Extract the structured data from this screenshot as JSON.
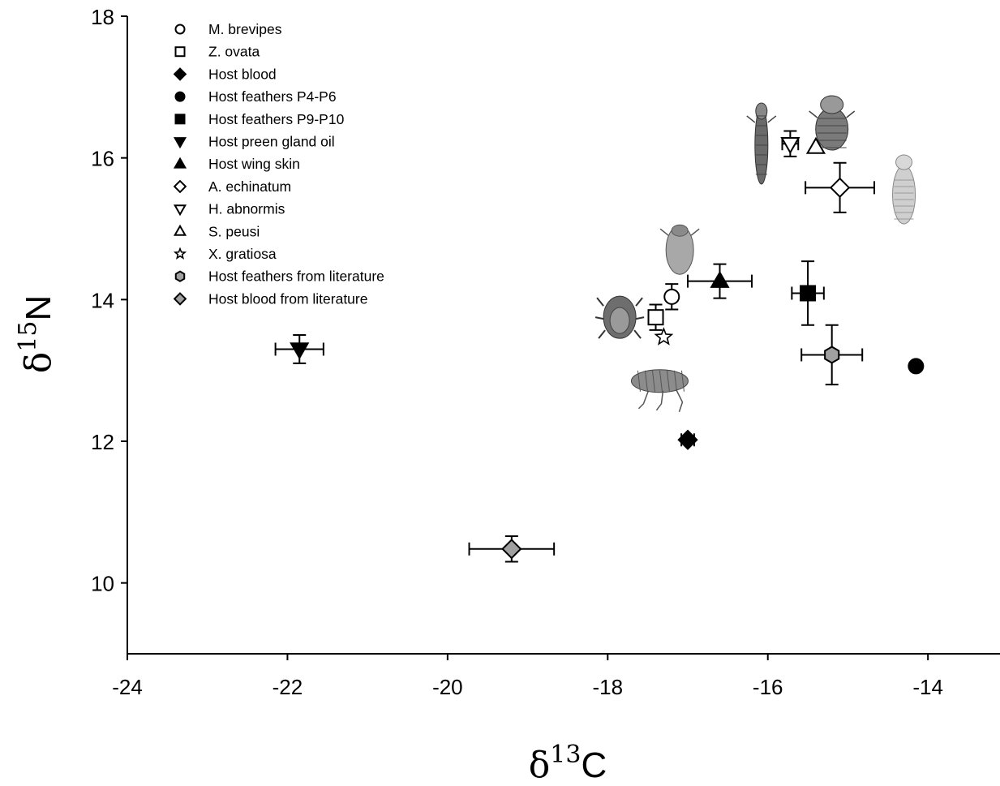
{
  "chart_data": {
    "type": "scatter",
    "title": "",
    "xlabel": "δ13C",
    "xlabel_parts": {
      "base": "δ",
      "sup": "13",
      "tail": "C"
    },
    "ylabel": "δ15N",
    "ylabel_parts": {
      "base": "δ",
      "sup": "15",
      "tail": "N"
    },
    "xlim": [
      -24,
      -13.1
    ],
    "ylim": [
      9,
      18
    ],
    "xticks": [
      -24,
      -22,
      -20,
      -18,
      -16,
      -14
    ],
    "xtick_labels": [
      "-24",
      "-22",
      "-20",
      "-18",
      "-16",
      "-14"
    ],
    "yticks": [
      10,
      12,
      14,
      16,
      18
    ],
    "ytick_labels": [
      "10",
      "12",
      "14",
      "16",
      "18"
    ],
    "grid": false,
    "legend_position": "top-left",
    "error_bars": true,
    "series": [
      {
        "name": "M. brevipes",
        "marker": "circle",
        "fill": "#ffffff",
        "points": [
          {
            "x": -17.2,
            "y": 14.04,
            "xerr": 0.0,
            "yerr": 0.18
          }
        ]
      },
      {
        "name": "Z. ovata",
        "marker": "square",
        "fill": "#ffffff",
        "points": [
          {
            "x": -17.4,
            "y": 13.75,
            "xerr": 0.08,
            "yerr": 0.18
          }
        ]
      },
      {
        "name": "Host blood",
        "marker": "diamond",
        "fill": "#000000",
        "points": [
          {
            "x": -17.0,
            "y": 12.02,
            "xerr": 0.08,
            "yerr": 0.05
          }
        ]
      },
      {
        "name": "Host feathers P4-P6",
        "marker": "circle",
        "fill": "#000000",
        "points": [
          {
            "x": -14.15,
            "y": 13.06,
            "xerr": 0.03,
            "yerr": 0.05
          }
        ]
      },
      {
        "name": "Host feathers P9-P10",
        "marker": "square",
        "fill": "#000000",
        "points": [
          {
            "x": -15.5,
            "y": 14.09,
            "xerr": 0.2,
            "yerr": 0.45
          }
        ]
      },
      {
        "name": "Host preen gland oil",
        "marker": "triangle-down",
        "fill": "#000000",
        "points": [
          {
            "x": -21.85,
            "y": 13.3,
            "xerr": 0.3,
            "yerr": 0.2
          }
        ]
      },
      {
        "name": "Host wing skin",
        "marker": "triangle-up",
        "fill": "#000000",
        "points": [
          {
            "x": -16.6,
            "y": 14.26,
            "xerr": 0.4,
            "yerr": 0.24
          }
        ]
      },
      {
        "name": "A. echinatum",
        "marker": "diamond",
        "fill": "#ffffff",
        "points": [
          {
            "x": -15.1,
            "y": 15.58,
            "xerr": 0.43,
            "yerr": 0.35
          }
        ]
      },
      {
        "name": "H. abnormis",
        "marker": "triangle-down",
        "fill": "#ffffff",
        "points": [
          {
            "x": -15.72,
            "y": 16.2,
            "xerr": 0.1,
            "yerr": 0.18
          }
        ]
      },
      {
        "name": "S. peusi",
        "marker": "triangle-up",
        "fill": "#ffffff",
        "points": [
          {
            "x": -15.4,
            "y": 16.15,
            "xerr": 0.0,
            "yerr": 0.0
          }
        ]
      },
      {
        "name": "X. gratiosa",
        "marker": "star",
        "fill": "#ffffff",
        "points": [
          {
            "x": -17.3,
            "y": 13.47,
            "xerr": 0.0,
            "yerr": 0.0
          }
        ]
      },
      {
        "name": "Host feathers from literature",
        "marker": "hexagon",
        "fill": "#a0a0a0",
        "points": [
          {
            "x": -15.2,
            "y": 13.22,
            "xerr": 0.38,
            "yerr": 0.42
          }
        ]
      },
      {
        "name": "Host blood from literature",
        "marker": "diamond",
        "fill": "#a0a0a0",
        "points": [
          {
            "x": -19.2,
            "y": 10.48,
            "xerr": 0.53,
            "yerr": 0.18
          }
        ]
      }
    ],
    "pictures": [
      {
        "name": "elongated-louse-illustration",
        "x": -16.08,
        "y": 16.18
      },
      {
        "name": "round-louse-illustration",
        "x": -15.2,
        "y": 16.5
      },
      {
        "name": "pale-louse-illustration",
        "x": -14.3,
        "y": 15.55
      },
      {
        "name": "mite-illustration",
        "x": -17.1,
        "y": 14.7
      },
      {
        "name": "spiny-mite-illustration",
        "x": -17.85,
        "y": 13.75
      },
      {
        "name": "flea-illustration",
        "x": -17.35,
        "y": 12.85
      }
    ],
    "colors": {
      "axis": "#000000",
      "black_fill": "#000000",
      "open_fill": "#ffffff",
      "literature_fill": "#a0a0a0"
    }
  }
}
